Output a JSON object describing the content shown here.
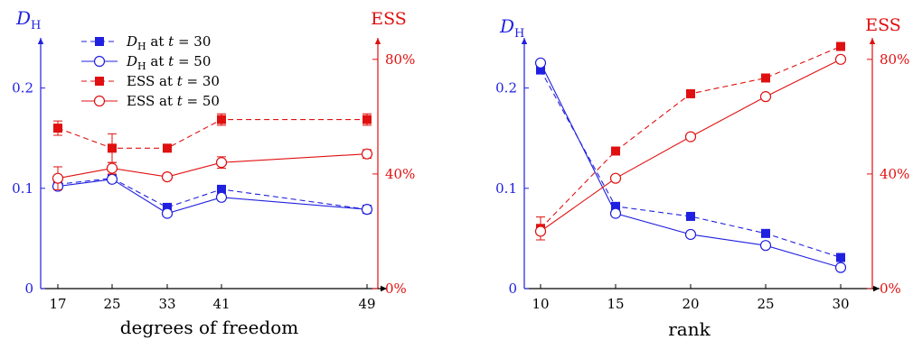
{
  "colors": {
    "blue": "#2020e0",
    "red": "#e01010",
    "black": "#000000"
  },
  "chart_data": [
    {
      "type": "line",
      "title": "",
      "xlabel": "degrees of freedom",
      "ylabel_left": "D_H",
      "ylabel_left_display": {
        "main": "D",
        "sub": "H"
      },
      "ylabel_right": "ESS",
      "x": [
        17,
        25,
        33,
        41,
        49
      ],
      "x_tick_labels": [
        "17",
        "25",
        "33",
        "41",
        "49"
      ],
      "ylim_left": [
        0,
        0.25
      ],
      "yticks_left": [
        0,
        0.1,
        0.2
      ],
      "ytick_labels_left": [
        "0",
        "0.1",
        "0.2"
      ],
      "ylim_right": [
        0,
        0.875
      ],
      "yticks_right": [
        0,
        0.4,
        0.8
      ],
      "ytick_labels_right": [
        "0%",
        "40%",
        "80%"
      ],
      "legend": [
        {
          "series": 0,
          "label_main": "D",
          "label_sub": "H",
          "label_rest": " at ",
          "label_var": "t",
          "label_value": " = 30"
        },
        {
          "series": 1,
          "label_main": "D",
          "label_sub": "H",
          "label_rest": " at ",
          "label_var": "t",
          "label_value": " = 50"
        },
        {
          "series": 2,
          "label_main": "ESS at ",
          "label_sub": "",
          "label_rest": "",
          "label_var": "t",
          "label_value": " = 30"
        },
        {
          "series": 3,
          "label_main": "ESS at ",
          "label_sub": "",
          "label_rest": "",
          "label_var": "t",
          "label_value": " = 50"
        }
      ],
      "legend_position": "top-left",
      "series": [
        {
          "name": "D_H at t = 30",
          "axis": "left",
          "color": "blue",
          "marker": "square",
          "dash": true,
          "values": [
            0.104,
            0.11,
            0.081,
            0.099,
            0.079
          ]
        },
        {
          "name": "D_H at t = 50",
          "axis": "left",
          "color": "blue",
          "marker": "circle",
          "dash": false,
          "values": [
            0.102,
            0.109,
            0.075,
            0.091,
            0.079
          ]
        },
        {
          "name": "ESS at t = 30",
          "axis": "right",
          "color": "red",
          "marker": "square",
          "dash": true,
          "values": [
            0.56,
            0.49,
            0.49,
            0.59,
            0.59
          ],
          "err": [
            0.025,
            0.05,
            0.0,
            0.02,
            0.02
          ]
        },
        {
          "name": "ESS at t = 50",
          "axis": "right",
          "color": "red",
          "marker": "circle",
          "dash": false,
          "values": [
            0.385,
            0.42,
            0.39,
            0.44,
            0.47
          ],
          "err": [
            0.04,
            0.02,
            0.01,
            0.02,
            0.015
          ]
        }
      ]
    },
    {
      "type": "line",
      "title": "",
      "xlabel": "rank",
      "ylabel_left": "D_H",
      "ylabel_left_display": {
        "main": "D",
        "sub": "H"
      },
      "ylabel_right": "ESS",
      "x": [
        10,
        15,
        20,
        25,
        30
      ],
      "x_tick_labels": [
        "10",
        "15",
        "20",
        "25",
        "30"
      ],
      "xlim": [
        8.2,
        31.5
      ],
      "ylim_left": [
        0,
        0.25
      ],
      "yticks_left": [
        0,
        0.1,
        0.2
      ],
      "ytick_labels_left": [
        "0",
        "0.1",
        "0.2"
      ],
      "ylim_right": [
        0,
        0.875
      ],
      "yticks_right": [
        0,
        0.4,
        0.8
      ],
      "ytick_labels_right": [
        "0%",
        "40%",
        "80%"
      ],
      "series": [
        {
          "name": "D_H at t = 30",
          "axis": "left",
          "color": "blue",
          "marker": "square",
          "dash": true,
          "values": [
            0.218,
            0.082,
            0.072,
            0.055,
            0.031
          ]
        },
        {
          "name": "D_H at t = 50",
          "axis": "left",
          "color": "blue",
          "marker": "circle",
          "dash": false,
          "values": [
            0.225,
            0.075,
            0.054,
            0.043,
            0.021
          ]
        },
        {
          "name": "ESS at t = 30",
          "axis": "right",
          "color": "red",
          "marker": "square",
          "dash": true,
          "values": [
            0.21,
            0.48,
            0.68,
            0.735,
            0.845
          ],
          "err": [
            0.04,
            0,
            0,
            0,
            0
          ]
        },
        {
          "name": "ESS at t = 50",
          "axis": "right",
          "color": "red",
          "marker": "circle",
          "dash": false,
          "values": [
            0.2,
            0.385,
            0.53,
            0.67,
            0.8
          ],
          "err": [
            0,
            0,
            0,
            0,
            0
          ]
        }
      ]
    }
  ]
}
